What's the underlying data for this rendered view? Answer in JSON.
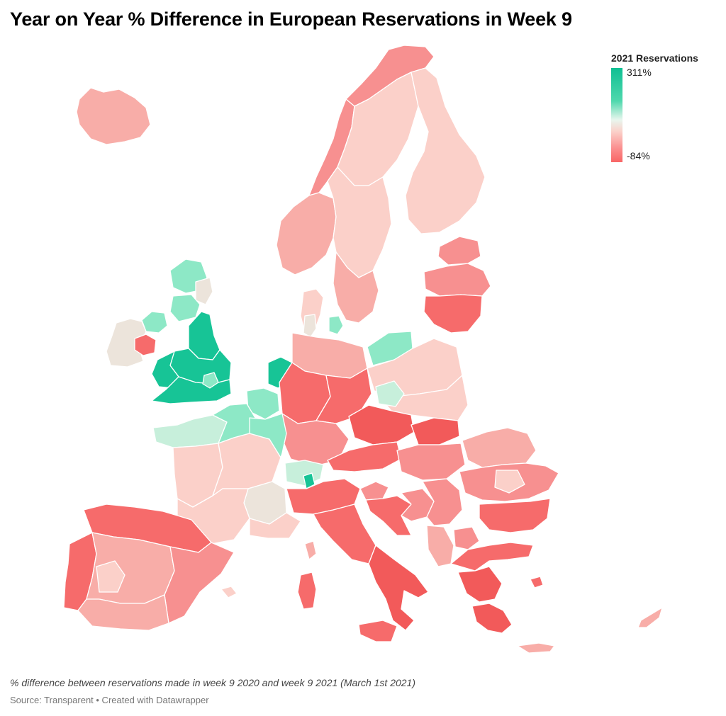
{
  "title": "Year on Year % Difference in European Reservations in Week 9",
  "legend": {
    "title": "2021 Reservations",
    "max_label": "311%",
    "min_label": "-84%",
    "max_value": 311,
    "min_value": -84,
    "color_max": "#0fbf93",
    "color_mid": "#e8f6ee",
    "color_min": "#f86565"
  },
  "subtitle": "% difference between reservations made in week 9 2020 and week 9 2021 (March 1st 2021)",
  "source": "Source: Transparent • Created with Datawrapper",
  "colors": {
    "strong_green": "#17c496",
    "mid_green": "#8de8c6",
    "light_green": "#c7efdb",
    "neutral": "#ece4db",
    "light_pink": "#fbd0c9",
    "pink": "#f8ada8",
    "salmon": "#f79090",
    "red": "#f66b6b",
    "deep_red": "#f25a5a"
  }
}
